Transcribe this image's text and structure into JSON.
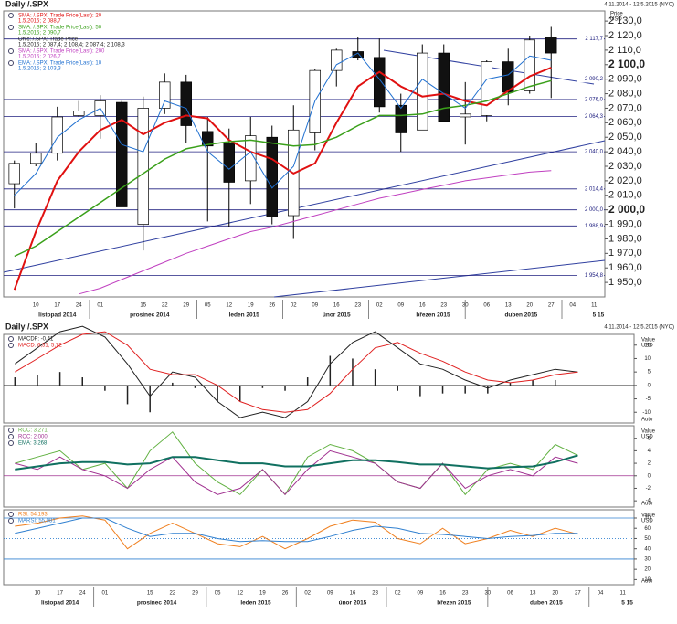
{
  "chart_data": [
    {
      "type": "candlestick",
      "title": "Daily /.SPX",
      "date_range": "4.11.2014 - 12.5.2015 (NYC)",
      "y_label": "Price",
      "y_unit": "USD",
      "categories": [
        null,
        "10",
        "17",
        "24",
        "01",
        null,
        "15",
        "22",
        "29",
        "05",
        "12",
        "19",
        "26",
        "02",
        "09",
        "16",
        "23",
        "02",
        "09",
        "16",
        "23",
        "30",
        "06",
        "13",
        "20",
        "27",
        "04",
        "11"
      ],
      "months": [
        "listopad 2014",
        "prosinec 2014",
        "leden 2015",
        "únor 2015",
        "březen 2015",
        "duben 2015",
        "5 15"
      ],
      "ohlc": {
        "name": "Ohlc: /.SPX: Trade Price",
        "last": "1.5.2015; 2 087,4; 2 108,4; 2 087,4; 2 108,3",
        "open": [
          2018,
          2032,
          2039,
          2065,
          2065,
          2074,
          1990,
          2070,
          2088,
          2054,
          2046,
          2020,
          2050,
          1996,
          2053,
          2096,
          2109,
          2105,
          2072,
          2055,
          2108,
          2064,
          2065,
          2102,
          2082,
          2119,
          null,
          null
        ],
        "high": [
          2034,
          2046,
          2071,
          2075,
          2079,
          2075,
          2078,
          2094,
          2093,
          2064,
          2056,
          2064,
          2058,
          2072,
          2097,
          2111,
          2119,
          2118,
          2080,
          2114,
          2114,
          2088,
          2103,
          2111,
          2120,
          2126,
          null,
          null
        ],
        "low": [
          2001,
          2030,
          2034,
          2064,
          2049,
          2002,
          1972,
          2066,
          2046,
          1992,
          1988,
          2004,
          1990,
          1980,
          2041,
          2085,
          2103,
          2067,
          2040,
          2055,
          2061,
          2045,
          2061,
          2072,
          2080,
          2077,
          null,
          null
        ],
        "close": [
          2032,
          2039,
          2064,
          2068,
          2075,
          2002,
          2070,
          2088,
          2058,
          2044,
          2019,
          2051,
          1995,
          2055,
          2096,
          2110,
          2105,
          2071,
          2053,
          2108,
          2061,
          2066,
          2102,
          2081,
          2117,
          2108,
          null,
          null
        ]
      },
      "series": [
        {
          "name": "SMA: /.SPX: Trade Price(Last): 20",
          "last": "1.5.2015; 2 088,7",
          "color": "#e01010",
          "width": 2,
          "values": [
            1945,
            1985,
            2020,
            2040,
            2055,
            2062,
            2052,
            2060,
            2065,
            2063,
            2048,
            2040,
            2035,
            2025,
            2032,
            2060,
            2085,
            2095,
            2085,
            2078,
            2080,
            2075,
            2072,
            2082,
            2092,
            2098,
            null,
            null
          ]
        },
        {
          "name": "SMA: /.SPX: Trade Price(Last): 50",
          "last": "1.5.2015; 2 090,7",
          "color": "#3aa01a",
          "width": 1.5,
          "values": [
            1968,
            1975,
            1985,
            1995,
            2005,
            2015,
            2025,
            2035,
            2042,
            2045,
            2047,
            2048,
            2046,
            2044,
            2045,
            2050,
            2058,
            2065,
            2065,
            2066,
            2070,
            2072,
            2075,
            2080,
            2085,
            2089,
            null,
            null
          ]
        },
        {
          "name": "SMA: /.SPX: Trade Price(Last): 200",
          "last": "1.5.2015; 2 026,7",
          "color": "#c040c0",
          "width": 1,
          "values": [
            null,
            null,
            null,
            1942,
            1946,
            1952,
            1958,
            1964,
            1970,
            1975,
            1980,
            1985,
            1988,
            1992,
            1996,
            2000,
            2004,
            2008,
            2011,
            2014,
            2017,
            2020,
            2022,
            2024,
            2026,
            2027,
            null,
            null
          ]
        },
        {
          "name": "EMA: /.SPX: Trade Price(Last): 10",
          "last": "1.5.2015; 2 103,3",
          "color": "#2070d0",
          "width": 1,
          "values": [
            2010,
            2025,
            2050,
            2062,
            2070,
            2045,
            2040,
            2075,
            2070,
            2040,
            2028,
            2040,
            2015,
            2030,
            2075,
            2100,
            2108,
            2090,
            2070,
            2090,
            2080,
            2070,
            2090,
            2093,
            2106,
            2103,
            null,
            null
          ]
        }
      ],
      "levels": [
        {
          "value": 2117.7,
          "label": "2 117,7"
        },
        {
          "value": 2090.2,
          "label": "2 090,2"
        },
        {
          "value": 2076.0,
          "label": "2 076,0"
        },
        {
          "value": 2064.3,
          "label": "2 064,3"
        },
        {
          "value": 2040.0,
          "label": "2 040,0"
        },
        {
          "value": 2014.4,
          "label": "2 014,4"
        },
        {
          "value": 2000.0,
          "label": "2 000,0"
        },
        {
          "value": 1988.9,
          "label": "1 988,9"
        },
        {
          "value": 1954.8,
          "label": "1 954,8"
        }
      ],
      "ylim": [
        1940,
        2137
      ],
      "yticks": [
        {
          "value": 1950,
          "label": "1 950,0"
        },
        {
          "value": 1960,
          "label": "1 960,0"
        },
        {
          "value": 1970,
          "label": "1 970,0"
        },
        {
          "value": 1980,
          "label": "1 980,0"
        },
        {
          "value": 1990,
          "label": "1 990,0"
        },
        {
          "value": 2000,
          "label": "2 000,0"
        },
        {
          "value": 2010,
          "label": "2 010,0"
        },
        {
          "value": 2020,
          "label": "2 020,0"
        },
        {
          "value": 2030,
          "label": "2 030,0"
        },
        {
          "value": 2040,
          "label": "2 040,0"
        },
        {
          "value": 2050,
          "label": "2 050,0"
        },
        {
          "value": 2060,
          "label": "2 060,0"
        },
        {
          "value": 2070,
          "label": "2 070,0"
        },
        {
          "value": 2080,
          "label": "2 080,0"
        },
        {
          "value": 2090,
          "label": "2 090,0"
        },
        {
          "value": 2100,
          "label": "2 100,0"
        },
        {
          "value": 2110,
          "label": "2 110,0"
        },
        {
          "value": 2120,
          "label": "2 120,0"
        },
        {
          "value": 2130,
          "label": "2 130,0"
        }
      ]
    },
    {
      "type": "macd",
      "title": "Daily /.SPX",
      "date_range": "4.11.2014 - 12.5.2015 (NYC)",
      "y_label": "Value",
      "y_unit": "USD",
      "scale_mode": "Auto",
      "series": [
        {
          "name": "MACDF: -0,41",
          "color": "#202020",
          "width": 1,
          "values": [
            8,
            14,
            20,
            22,
            18,
            8,
            -4,
            5,
            3,
            -6,
            -12,
            -10,
            -12,
            -6,
            8,
            16,
            20,
            14,
            8,
            6,
            2,
            -1,
            2,
            4,
            6,
            5,
            null,
            null
          ]
        },
        {
          "name": "MACD: 6,31; 5,72",
          "color": "#e02020",
          "width": 1,
          "values": [
            5,
            10,
            15,
            19,
            20,
            15,
            6,
            4,
            4,
            0,
            -6,
            -9,
            -10,
            -9,
            -3,
            6,
            14,
            16,
            12,
            9,
            5,
            2,
            1,
            2,
            4,
            5,
            null,
            null
          ]
        }
      ],
      "histogram": [
        3,
        4,
        5,
        3,
        -2,
        -7,
        -10,
        1,
        -1,
        -6,
        -6,
        -1,
        -2,
        3,
        11,
        10,
        6,
        -2,
        -4,
        -3,
        -3,
        -3,
        1,
        2,
        2,
        0,
        null,
        null
      ],
      "reference_lines": [
        0
      ],
      "ylim": [
        -14,
        19
      ],
      "yticks": [
        15,
        10,
        5,
        0,
        -5,
        -10
      ]
    },
    {
      "type": "line",
      "y_label": "Value",
      "y_unit": "USD",
      "scale_mode": "Auto",
      "series": [
        {
          "name": "ROC: 3,271",
          "color": "#60b040",
          "width": 1,
          "values": [
            2,
            3,
            4,
            1,
            2,
            -2,
            4,
            7,
            2,
            -1,
            -3,
            1,
            -3,
            3,
            5,
            4,
            2,
            -1,
            -2,
            2,
            -3,
            1,
            2,
            1,
            5,
            3.271,
            null,
            null
          ]
        },
        {
          "name": "ROC: 2,000",
          "color": "#a03090",
          "width": 1,
          "values": [
            2,
            1,
            3,
            1,
            0,
            -2,
            1,
            3,
            -1,
            -3,
            -2,
            1,
            -3,
            1,
            4,
            3,
            2,
            -1,
            -2,
            2,
            -2,
            0,
            1,
            0,
            3,
            2,
            null,
            null
          ]
        },
        {
          "name": "EMA: 3,268",
          "color": "#107060",
          "width": 2,
          "values": [
            1,
            1.5,
            2,
            2.2,
            2.2,
            1.8,
            2,
            3,
            3,
            2.5,
            2,
            2,
            1.5,
            1.5,
            2,
            2.5,
            2.5,
            2.2,
            1.8,
            1.8,
            1.5,
            1.2,
            1.4,
            1.5,
            2.2,
            3.268,
            null,
            null
          ]
        }
      ],
      "reference_lines": [
        0
      ],
      "ylim": [
        -5,
        8
      ],
      "yticks": [
        6,
        4,
        2,
        0,
        -2,
        -4
      ]
    },
    {
      "type": "line",
      "y_label": "Value",
      "y_unit": "USD",
      "scale_mode": "Auto",
      "categories": [
        null,
        "10",
        "17",
        "24",
        "01",
        null,
        "15",
        "22",
        "29",
        "05",
        "12",
        "19",
        "26",
        "02",
        "09",
        "16",
        "23",
        "02",
        "09",
        "16",
        "23",
        "30",
        "06",
        "13",
        "20",
        "27",
        "04",
        "11"
      ],
      "months": [
        "listopad 2014",
        "prosinec 2014",
        "leden 2015",
        "únor 2015",
        "březen 2015",
        "duben 2015",
        "5 15"
      ],
      "series": [
        {
          "name": "RSI: 54,193",
          "color": "#f08020",
          "width": 1,
          "values": [
            62,
            65,
            70,
            72,
            68,
            40,
            55,
            65,
            55,
            45,
            42,
            52,
            40,
            50,
            62,
            68,
            66,
            50,
            45,
            60,
            45,
            50,
            58,
            52,
            60,
            54.193,
            null,
            null
          ]
        },
        {
          "name": "MARSI: 55,081",
          "color": "#3080d0",
          "width": 1,
          "values": [
            55,
            60,
            65,
            70,
            70,
            60,
            52,
            55,
            55,
            50,
            47,
            48,
            47,
            47,
            52,
            58,
            62,
            60,
            55,
            54,
            52,
            50,
            52,
            53,
            55,
            55.081,
            null,
            null
          ]
        }
      ],
      "reference_lines": [
        70,
        50,
        30
      ],
      "ylim": [
        5,
        78
      ],
      "yticks": [
        70,
        60,
        50,
        40,
        30,
        20,
        10
      ]
    }
  ]
}
